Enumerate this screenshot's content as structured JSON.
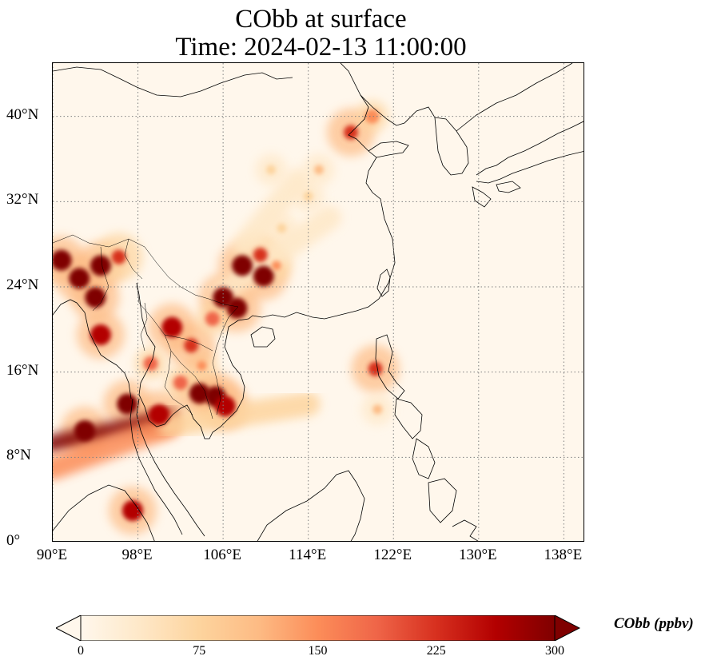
{
  "title": {
    "line1": "CObb at surface",
    "line2": "Time: 2024-02-13 11:00:00"
  },
  "map": {
    "extent": {
      "lon_min": 90,
      "lon_max": 140,
      "lat_min": 0,
      "lat_max": 45
    },
    "y_ticks": [
      {
        "value": 0,
        "label": "0°"
      },
      {
        "value": 8,
        "label": "8°N"
      },
      {
        "value": 16,
        "label": "16°N"
      },
      {
        "value": 24,
        "label": "24°N"
      },
      {
        "value": 32,
        "label": "32°N"
      },
      {
        "value": 40,
        "label": "40°N"
      }
    ],
    "x_ticks": [
      {
        "value": 90,
        "label": "90°E"
      },
      {
        "value": 98,
        "label": "98°E"
      },
      {
        "value": 106,
        "label": "106°E"
      },
      {
        "value": 114,
        "label": "114°E"
      },
      {
        "value": 122,
        "label": "122°E"
      },
      {
        "value": 130,
        "label": "130°E"
      },
      {
        "value": 138,
        "label": "138°E"
      }
    ],
    "gridlines": "dotted",
    "hotspots": [
      {
        "lon": 97.0,
        "lat": 13.0,
        "value": 300
      },
      {
        "lon": 93.0,
        "lat": 10.5,
        "value": 300
      },
      {
        "lon": 100.0,
        "lat": 12.0,
        "value": 260
      },
      {
        "lon": 105.3,
        "lat": 13.7,
        "value": 300
      },
      {
        "lon": 103.8,
        "lat": 14.0,
        "value": 300
      },
      {
        "lon": 106.2,
        "lat": 12.8,
        "value": 280
      },
      {
        "lon": 102.0,
        "lat": 15.0,
        "value": 200
      },
      {
        "lon": 104.0,
        "lat": 16.6,
        "value": 150
      },
      {
        "lon": 101.2,
        "lat": 20.2,
        "value": 280
      },
      {
        "lon": 103.0,
        "lat": 18.5,
        "value": 240
      },
      {
        "lon": 99.2,
        "lat": 16.8,
        "value": 180
      },
      {
        "lon": 94.5,
        "lat": 19.5,
        "value": 280
      },
      {
        "lon": 94.0,
        "lat": 23.0,
        "value": 300
      },
      {
        "lon": 92.5,
        "lat": 24.8,
        "value": 300
      },
      {
        "lon": 94.5,
        "lat": 26.0,
        "value": 300
      },
      {
        "lon": 90.8,
        "lat": 26.5,
        "value": 300
      },
      {
        "lon": 96.2,
        "lat": 26.8,
        "value": 220
      },
      {
        "lon": 106.0,
        "lat": 23.0,
        "value": 300
      },
      {
        "lon": 107.3,
        "lat": 22.0,
        "value": 300
      },
      {
        "lon": 107.8,
        "lat": 26.0,
        "value": 300
      },
      {
        "lon": 109.8,
        "lat": 25.0,
        "value": 300
      },
      {
        "lon": 109.5,
        "lat": 27.0,
        "value": 220
      },
      {
        "lon": 111.0,
        "lat": 26.0,
        "value": 150
      },
      {
        "lon": 105.0,
        "lat": 21.0,
        "value": 200
      },
      {
        "lon": 97.5,
        "lat": 3.0,
        "value": 260
      },
      {
        "lon": 120.3,
        "lat": 16.3,
        "value": 240
      },
      {
        "lon": 120.5,
        "lat": 12.5,
        "value": 100
      },
      {
        "lon": 118.0,
        "lat": 38.5,
        "value": 240
      },
      {
        "lon": 120.0,
        "lat": 40.0,
        "value": 160
      },
      {
        "lon": 115.0,
        "lat": 35.0,
        "value": 110
      },
      {
        "lon": 110.5,
        "lat": 35.0,
        "value": 90
      },
      {
        "lon": 114.0,
        "lat": 32.5,
        "value": 70
      },
      {
        "lon": 111.5,
        "lat": 29.5,
        "value": 70
      }
    ],
    "plumes": [
      {
        "from": [
          90.0,
          9.3
        ],
        "to": [
          101.0,
          11.7
        ],
        "value": 300
      },
      {
        "from": [
          90.0,
          7.0
        ],
        "to": [
          101.0,
          11.0
        ],
        "value": 140
      },
      {
        "from": [
          101.0,
          11.0
        ],
        "to": [
          114.0,
          13.0
        ],
        "value": 60
      },
      {
        "from": [
          106.0,
          23.5
        ],
        "to": [
          116.0,
          30.5
        ],
        "value": 50
      },
      {
        "from": [
          108.0,
          28.0
        ],
        "to": [
          113.0,
          34.0
        ],
        "value": 40
      }
    ]
  },
  "colorbar": {
    "title": "CObb (ppbv)",
    "min": 0,
    "max": 300,
    "ticks": [
      {
        "value": 0,
        "label": "0"
      },
      {
        "value": 75,
        "label": "75"
      },
      {
        "value": 150,
        "label": "150"
      },
      {
        "value": 225,
        "label": "225"
      },
      {
        "value": 300,
        "label": "300"
      }
    ],
    "colormap": [
      "#fff7ec",
      "#fee8c8",
      "#fdd49e",
      "#fdbb84",
      "#fc8d59",
      "#ef6548",
      "#d7301f",
      "#b30000",
      "#7f0000"
    ],
    "extend": "both"
  }
}
